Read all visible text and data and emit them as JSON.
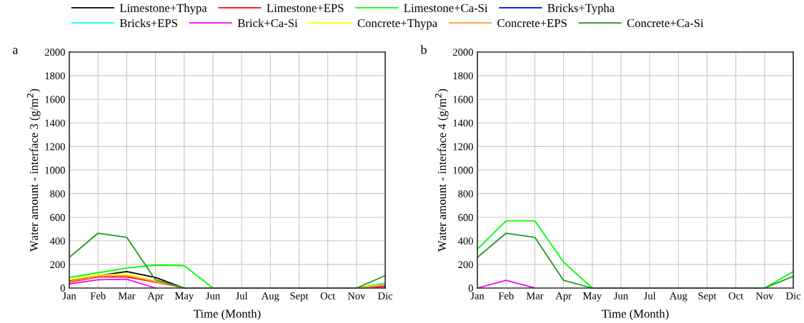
{
  "chart_data": [
    {
      "type": "line",
      "title": "a",
      "xlabel": "Time (Month)",
      "ylabel": "Water amount - interface 3 (g/m$^{2}$)",
      "categories": [
        "Jan",
        "Feb",
        "Mar",
        "Apr",
        "May",
        "Jun",
        "Jul",
        "Aug",
        "Sept",
        "Oct",
        "Nov",
        "Dic"
      ],
      "ylim": [
        0,
        2000
      ],
      "yticks": [
        0,
        200,
        400,
        600,
        800,
        1000,
        1200,
        1400,
        1600,
        1800,
        2000
      ],
      "grid": true,
      "legend": "top",
      "series": [
        {
          "name": "Limestone+Thypa",
          "color": "#000000",
          "values": [
            60,
            105,
            140,
            90,
            0,
            null,
            null,
            null,
            null,
            null,
            0,
            20
          ]
        },
        {
          "name": "Limestone+EPS",
          "color": "#ff0000",
          "values": [
            50,
            95,
            95,
            50,
            0,
            null,
            null,
            null,
            null,
            null,
            0,
            15
          ]
        },
        {
          "name": "Limestone+Ca-Si",
          "color": "#00ff00",
          "values": [
            90,
            130,
            170,
            195,
            190,
            0,
            null,
            null,
            null,
            null,
            0,
            40
          ]
        },
        {
          "name": "Bricks+Typha",
          "color": "#0000ff",
          "values": [
            null,
            null,
            null,
            null,
            null,
            null,
            null,
            null,
            null,
            null,
            null,
            null
          ]
        },
        {
          "name": "Bricks+EPS",
          "color": "#00ffff",
          "values": [
            null,
            null,
            null,
            null,
            null,
            null,
            null,
            null,
            null,
            null,
            null,
            null
          ]
        },
        {
          "name": "Brick+Ca-Si",
          "color": "#ff00ff",
          "values": [
            35,
            70,
            75,
            0,
            null,
            null,
            null,
            null,
            null,
            null,
            0,
            5
          ]
        },
        {
          "name": "Concrete+Thypa",
          "color": "#ffff00",
          "values": [
            70,
            110,
            120,
            60,
            0,
            null,
            null,
            null,
            null,
            null,
            0,
            30
          ]
        },
        {
          "name": "Concrete+EPS",
          "color": "#ff9933",
          "values": [
            55,
            100,
            105,
            55,
            0,
            null,
            null,
            null,
            null,
            null,
            0,
            25
          ]
        },
        {
          "name": "Concrete+Ca-Si",
          "color": "#229922",
          "values": [
            260,
            465,
            430,
            70,
            0,
            0,
            0,
            0,
            0,
            0,
            0,
            105
          ]
        }
      ]
    },
    {
      "type": "line",
      "title": "b",
      "xlabel": "Time (Month)",
      "ylabel": "Water amount - interface 4 (g/m$^{2}$)",
      "categories": [
        "Jan",
        "Feb",
        "Mar",
        "Apr",
        "May",
        "Jun",
        "Jul",
        "Aug",
        "Sept",
        "Oct",
        "Nov",
        "Dic"
      ],
      "ylim": [
        0,
        2000
      ],
      "yticks": [
        0,
        200,
        400,
        600,
        800,
        1000,
        1200,
        1400,
        1600,
        1800,
        2000
      ],
      "grid": true,
      "series": [
        {
          "color": "#ff00ff",
          "values": [
            0,
            65,
            0,
            null,
            null,
            null,
            null,
            null,
            null,
            null,
            null,
            null
          ]
        },
        {
          "color": "#00ff00",
          "values": [
            330,
            570,
            570,
            220,
            0,
            null,
            null,
            null,
            null,
            null,
            0,
            140
          ]
        },
        {
          "color": "#229922",
          "values": [
            260,
            465,
            430,
            65,
            0,
            0,
            0,
            0,
            0,
            0,
            0,
            100
          ]
        }
      ]
    }
  ]
}
